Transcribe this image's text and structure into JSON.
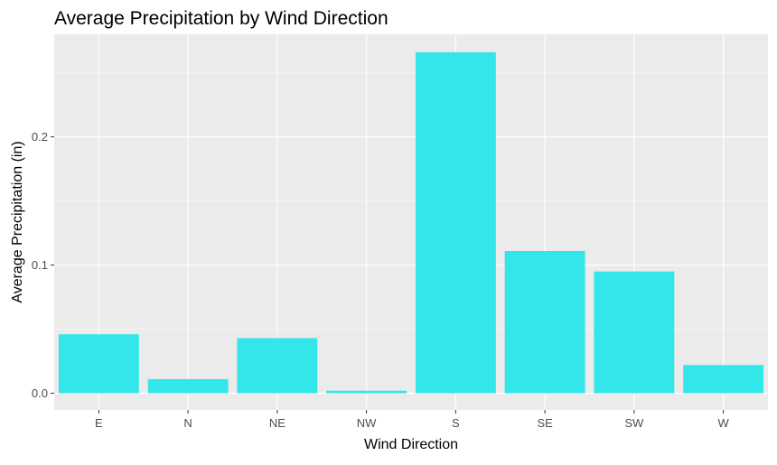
{
  "chart_data": {
    "type": "bar",
    "title": "Average Precipitation by Wind Direction",
    "xlabel": "Wind Direction",
    "ylabel": "Average Precipitation (in)",
    "categories": [
      "E",
      "N",
      "NE",
      "NW",
      "S",
      "SE",
      "SW",
      "W"
    ],
    "values": [
      0.046,
      0.011,
      0.043,
      0.002,
      0.266,
      0.111,
      0.095,
      0.022
    ],
    "ylim": [
      -0.013,
      0.28
    ],
    "yticks": [
      0.0,
      0.1,
      0.2
    ],
    "ytick_labels": [
      "0.0",
      "0.1",
      "0.2"
    ],
    "grid": true,
    "legend": "none",
    "colors": {
      "bar": "#33E6EA",
      "panel": "#EBEBEB",
      "grid_major": "#FFFFFF",
      "grid_minor": "#F5F5F5"
    }
  }
}
